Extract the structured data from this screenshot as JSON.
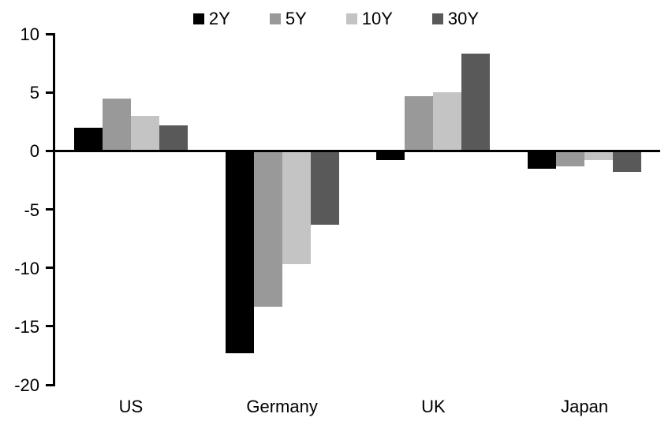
{
  "chart_data": {
    "type": "bar",
    "title": "",
    "xlabel": "",
    "ylabel": "",
    "categories": [
      "US",
      "Germany",
      "UK",
      "Japan"
    ],
    "series": [
      {
        "name": "2Y",
        "color": "#000000",
        "values": [
          2.0,
          -17.3,
          -0.8,
          -1.5
        ]
      },
      {
        "name": "5Y",
        "color": "#999999",
        "values": [
          4.5,
          -13.3,
          4.7,
          -1.3
        ]
      },
      {
        "name": "10Y",
        "color": "#c4c4c4",
        "values": [
          3.0,
          -9.7,
          5.0,
          -0.8
        ]
      },
      {
        "name": "30Y",
        "color": "#595959",
        "values": [
          2.2,
          -6.3,
          8.3,
          -1.8
        ]
      }
    ],
    "ylim": [
      -20,
      10
    ],
    "yticks": [
      10,
      5,
      0,
      -5,
      -10,
      -15,
      -20
    ],
    "legend_position": "top",
    "grid": false,
    "axis_color": "#000000"
  }
}
